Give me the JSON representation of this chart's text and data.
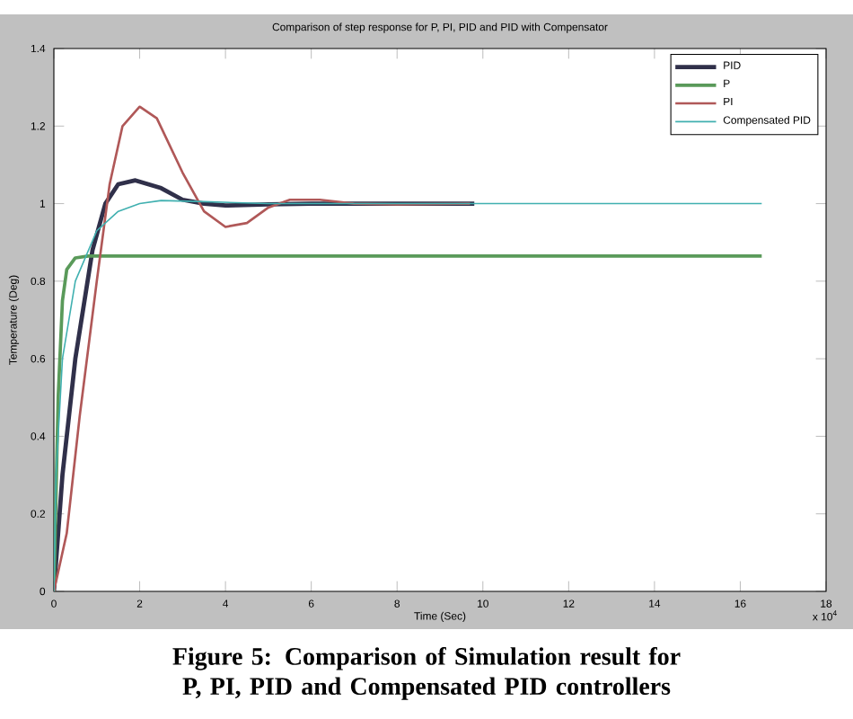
{
  "chart_data": {
    "type": "line",
    "title": "Comparison of step response for P, PI, PID and PID with Compensator",
    "xlabel": "Time (Sec)",
    "ylabel": "Temperature (Deg)",
    "xlim": [
      0,
      18
    ],
    "xticks": [
      0,
      2,
      4,
      6,
      8,
      10,
      12,
      14,
      16,
      18
    ],
    "ylim": [
      0,
      1.4
    ],
    "yticks": [
      0,
      0.2,
      0.4,
      0.6,
      0.8,
      1,
      1.2,
      1.4
    ],
    "grid": false,
    "legend": "top right",
    "marker": "none",
    "line_style": "solid",
    "annotations": [
      "x 10$^{4}$",
      "**Figure 5: Comparison of Simulation result for P, PI, PID and Compensated PID controllers**"
    ],
    "series": [
      {
        "name": "PID",
        "color": "#30304a",
        "x": [
          0,
          0.2,
          0.5,
          0.9,
          1.2,
          1.5,
          1.9,
          2.5,
          3,
          3.5,
          4,
          5,
          6,
          7,
          9.8
        ],
        "values": [
          0,
          0.3,
          0.6,
          0.88,
          1.0,
          1.05,
          1.06,
          1.04,
          1.01,
          1.0,
          0.995,
          0.998,
          1.0,
          1.0,
          1.0
        ]
      },
      {
        "name": "P",
        "color": "#5a9a5a",
        "x": [
          0,
          0.1,
          0.2,
          0.3,
          0.5,
          0.8,
          16.5
        ],
        "values": [
          0,
          0.5,
          0.75,
          0.83,
          0.86,
          0.865,
          0.865
        ]
      },
      {
        "name": "PI",
        "color": "#b05858",
        "x": [
          0,
          0.3,
          0.6,
          1,
          1.3,
          1.6,
          2,
          2.4,
          3,
          3.5,
          4,
          4.5,
          5,
          5.5,
          6.2,
          7,
          8,
          9.7
        ],
        "values": [
          0,
          0.15,
          0.45,
          0.8,
          1.05,
          1.2,
          1.25,
          1.22,
          1.08,
          0.98,
          0.94,
          0.95,
          0.99,
          1.01,
          1.01,
          1.0,
          0.998,
          1.0
        ]
      },
      {
        "name": "Compensated PID",
        "color": "#40b0b0",
        "x": [
          0,
          0.05,
          0.2,
          0.5,
          1,
          1.5,
          2,
          2.5,
          3.5,
          5,
          16.5
        ],
        "values": [
          0,
          0.3,
          0.6,
          0.8,
          0.93,
          0.98,
          1.0,
          1.008,
          1.005,
          1.0,
          1.0
        ]
      }
    ]
  }
}
